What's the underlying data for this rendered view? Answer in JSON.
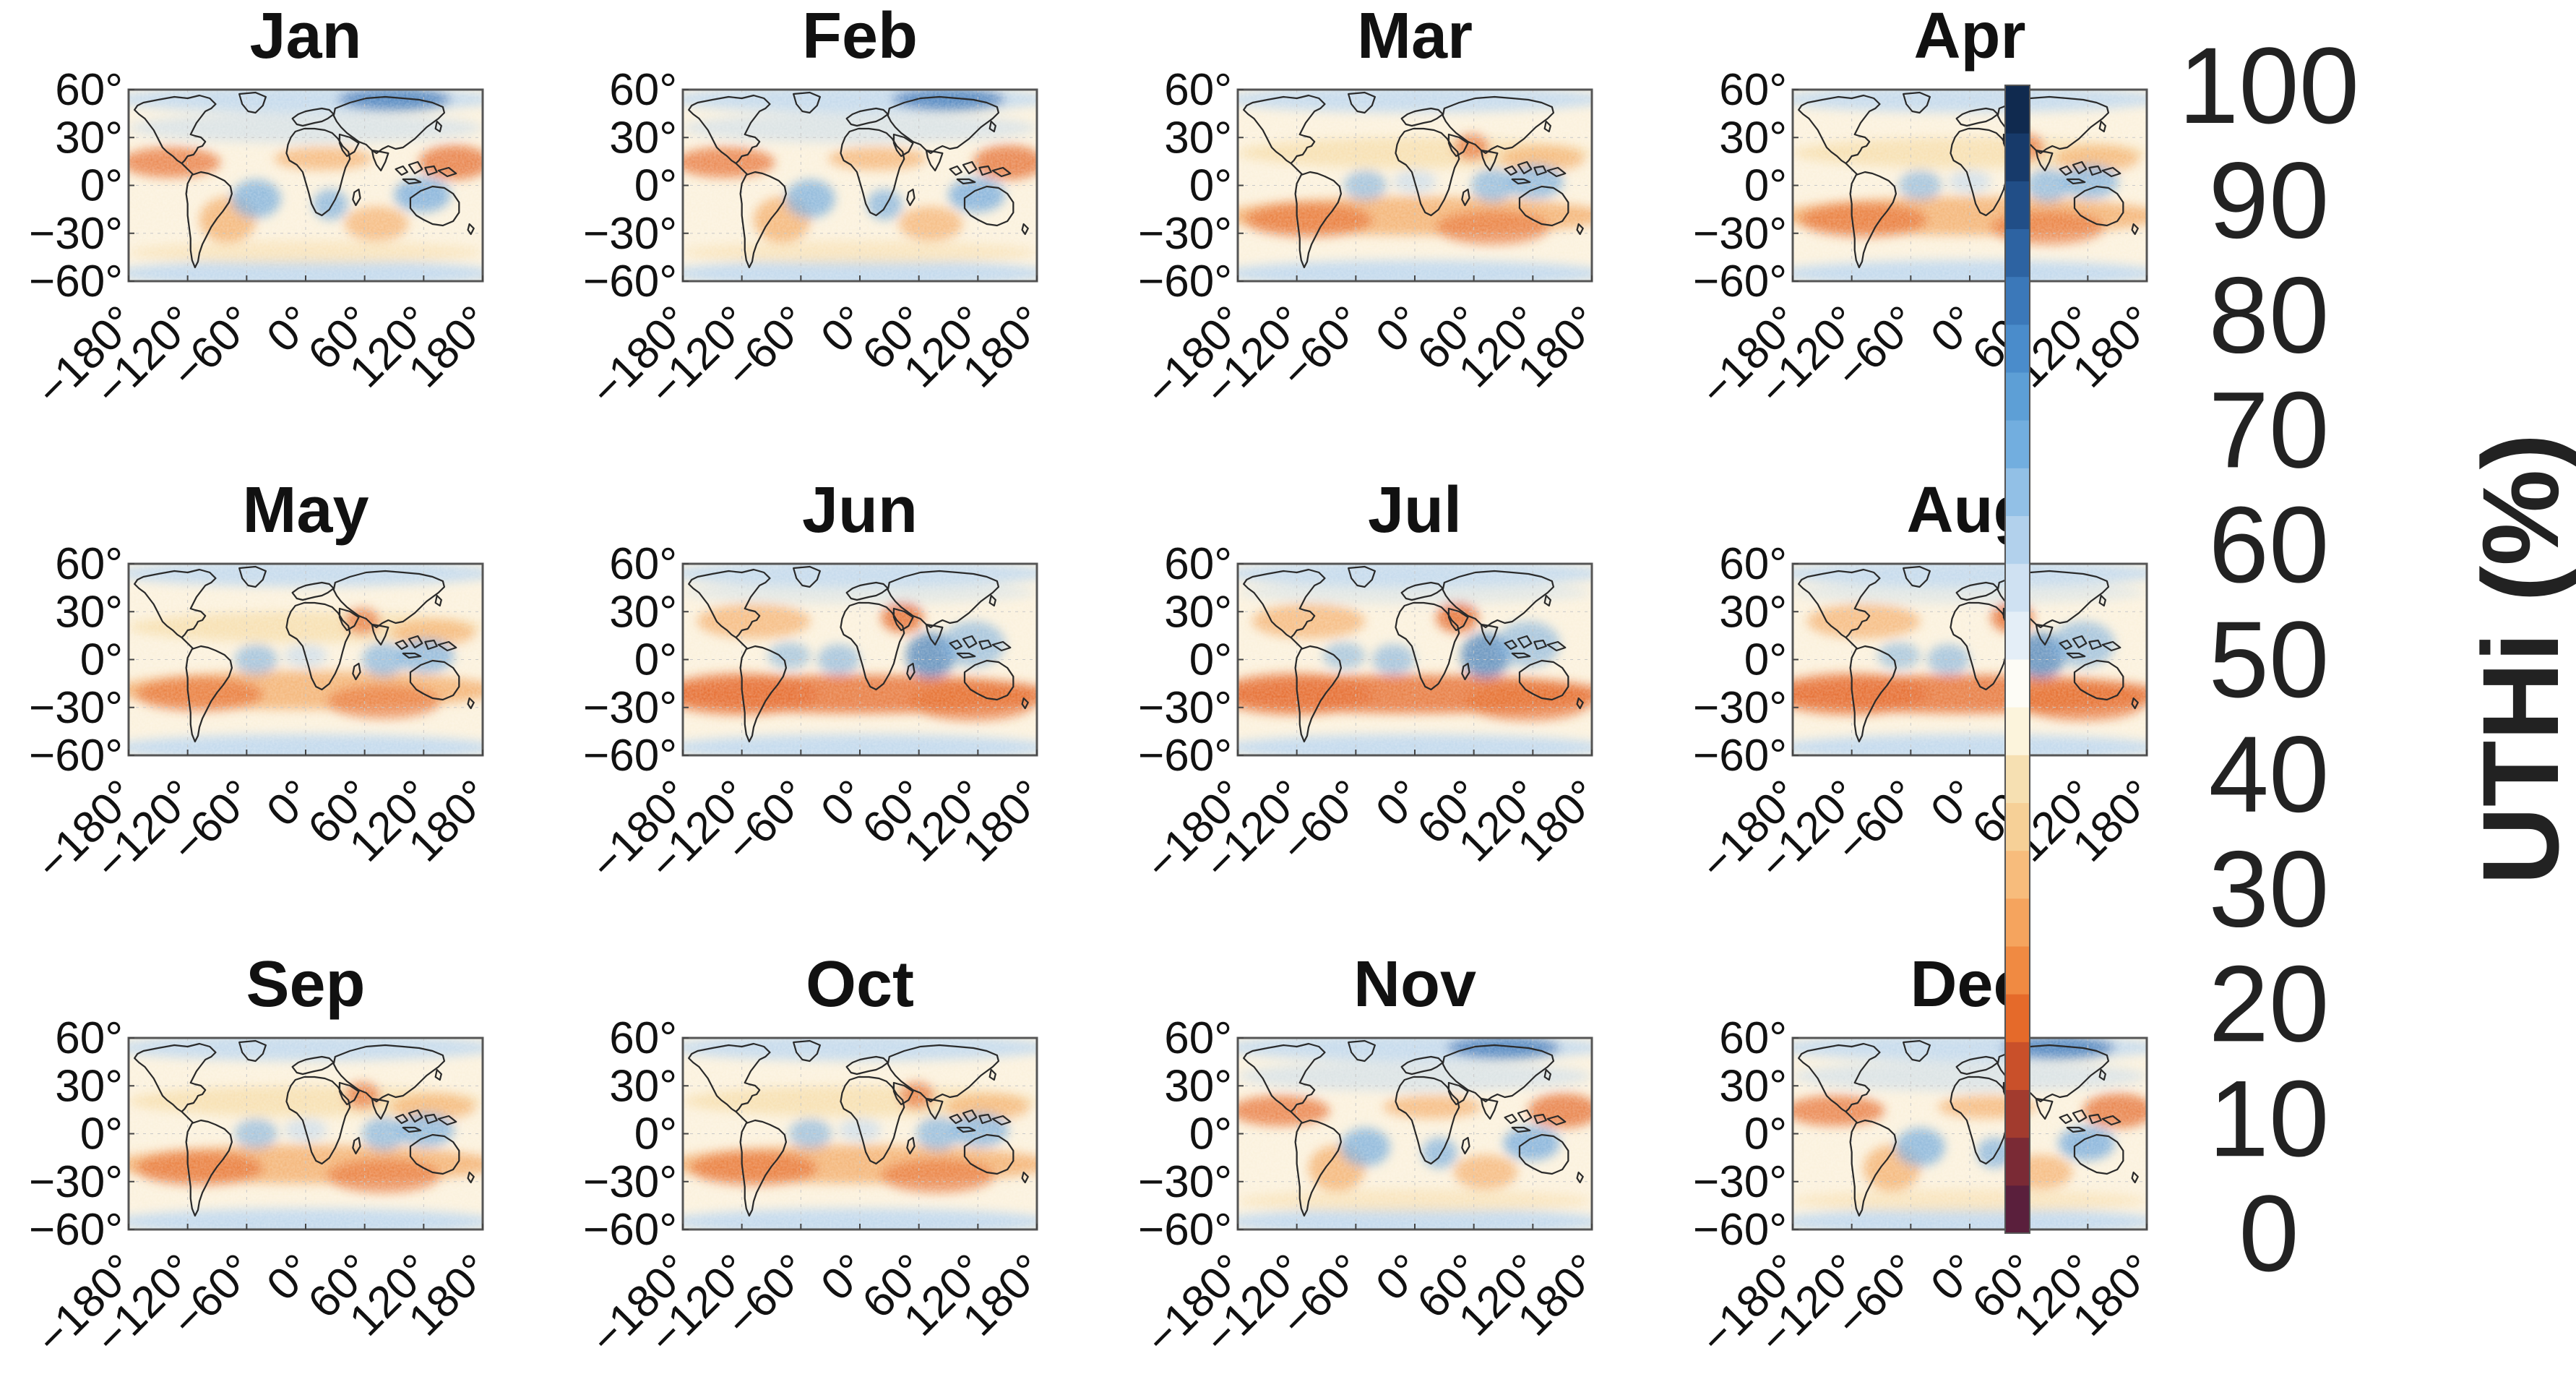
{
  "figure": {
    "panels": [
      {
        "title": "Jan"
      },
      {
        "title": "Feb"
      },
      {
        "title": "Mar"
      },
      {
        "title": "Apr"
      },
      {
        "title": "May"
      },
      {
        "title": "Jun"
      },
      {
        "title": "Jul"
      },
      {
        "title": "Aug"
      },
      {
        "title": "Sep"
      },
      {
        "title": "Oct"
      },
      {
        "title": "Nov"
      },
      {
        "title": "Dec"
      }
    ],
    "lat_ticks": [
      "60°",
      "30°",
      "0°",
      "−30°",
      "−60°"
    ],
    "lon_ticks": [
      "−180°",
      "−120°",
      "−60°",
      "0°",
      "60°",
      "120°",
      "180°"
    ],
    "colorbar": {
      "label": "UTHi (%)",
      "ticks": [
        "100",
        "90",
        "80",
        "70",
        "60",
        "50",
        "40",
        "30",
        "20",
        "10",
        "0"
      ],
      "range": [
        0,
        100
      ],
      "colors": [
        "#5a1f3c",
        "#7a2a35",
        "#a23b2e",
        "#c9502a",
        "#e56a2a",
        "#f08a42",
        "#f5a45e",
        "#f7bc7c",
        "#f6d097",
        "#f6e0b2",
        "#fcf4dc",
        "#fdfcf6",
        "#e4eef7",
        "#cfe1f2",
        "#b2d1ec",
        "#92c0e6",
        "#72aedf",
        "#5d9fd6",
        "#4a8ccb",
        "#3b78b9",
        "#2d63a2",
        "#214e87",
        "#173a6a",
        "#102a4f"
      ]
    }
  }
}
